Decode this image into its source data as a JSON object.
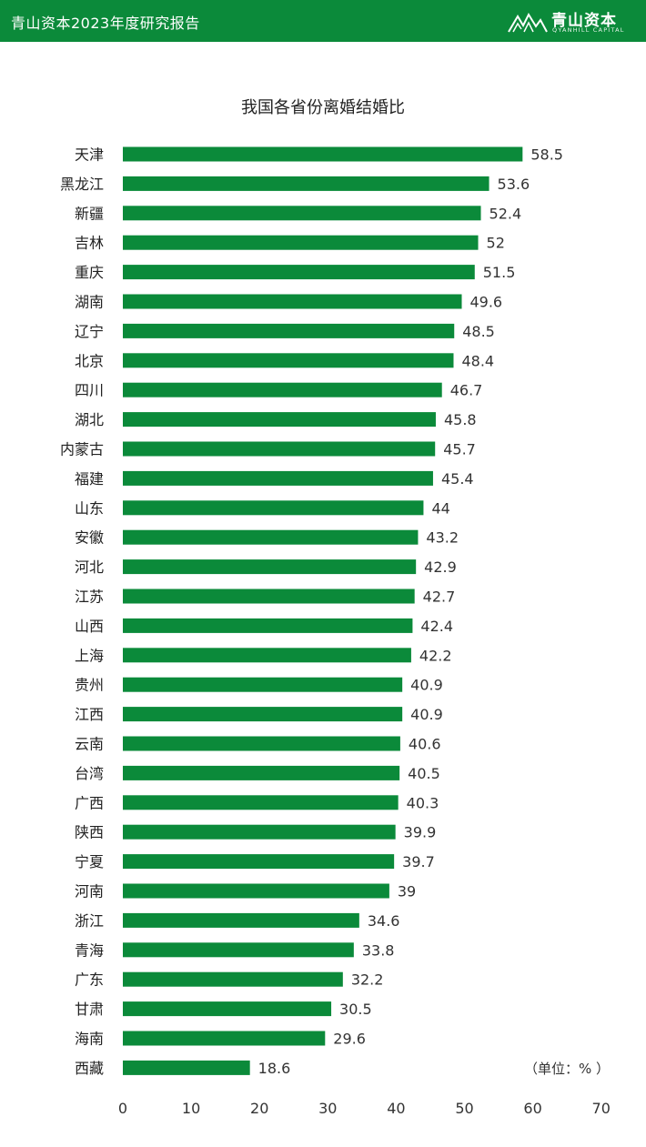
{
  "header": {
    "title": "青山资本2023年度研究报告",
    "brand_name": "青山资本",
    "brand_sub": "QYANHILL CAPITAL"
  },
  "colors": {
    "accent": "#0b8a3a",
    "bar": "#0b8a3a"
  },
  "chart_data": {
    "type": "bar",
    "orientation": "horizontal",
    "title": "我国各省份离婚结婚比",
    "unit_label": "（单位：% ）",
    "categories": [
      "天津",
      "黑龙江",
      "新疆",
      "吉林",
      "重庆",
      "湖南",
      "辽宁",
      "北京",
      "四川",
      "湖北",
      "内蒙古",
      "福建",
      "山东",
      "安徽",
      "河北",
      "江苏",
      "山西",
      "上海",
      "贵州",
      "江西",
      "云南",
      "台湾",
      "广西",
      "陕西",
      "宁夏",
      "河南",
      "浙江",
      "青海",
      "广东",
      "甘肃",
      "海南",
      "西藏"
    ],
    "values": [
      58.5,
      53.6,
      52.4,
      52,
      51.5,
      49.6,
      48.5,
      48.4,
      46.7,
      45.8,
      45.7,
      45.4,
      44,
      43.2,
      42.9,
      42.7,
      42.4,
      42.2,
      40.9,
      40.9,
      40.6,
      40.5,
      40.3,
      39.9,
      39.7,
      39,
      34.6,
      33.8,
      32.2,
      30.5,
      29.6,
      18.6
    ],
    "data_labels": [
      "58.5",
      "53.6",
      "52.4",
      "52",
      "51.5",
      "49.6",
      "48.5",
      "48.4",
      "46.7",
      "45.8",
      "45.7",
      "45.4",
      "44",
      "43.2",
      "42.9",
      "42.7",
      "42.4",
      "42.2",
      "40.9",
      "40.9",
      "40.6",
      "40.5",
      "40.3",
      "39.9",
      "39.7",
      "39",
      "34.6",
      "33.8",
      "32.2",
      "30.5",
      "29.6",
      "18.6"
    ],
    "xlim": [
      0,
      70
    ],
    "xticks": [
      "0",
      "10",
      "20",
      "30",
      "40",
      "50",
      "60",
      "70"
    ],
    "grid": false,
    "legend": "none"
  }
}
